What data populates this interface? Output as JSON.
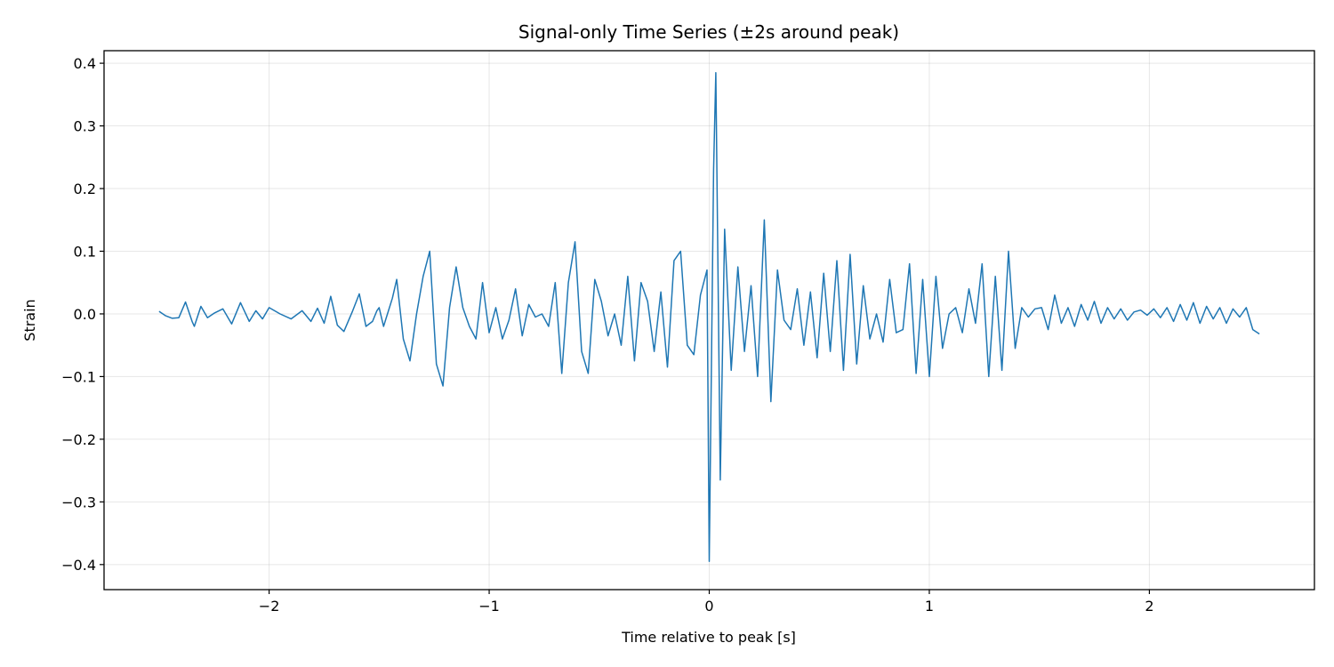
{
  "chart_data": {
    "type": "line",
    "title": "Signal-only Time Series (±2s around peak)",
    "xlabel": "Time relative to peak [s]",
    "ylabel": "Strain",
    "xlim": [
      -2.75,
      2.75
    ],
    "ylim": [
      -0.44,
      0.42
    ],
    "xticks": [
      -2,
      -1,
      0,
      1,
      2
    ],
    "xtick_labels": [
      "−2",
      "−1",
      "0",
      "1",
      "2"
    ],
    "yticks": [
      -0.4,
      -0.3,
      -0.2,
      -0.1,
      0.0,
      0.1,
      0.2,
      0.3,
      0.4
    ],
    "ytick_labels": [
      "−0.4",
      "−0.3",
      "−0.2",
      "−0.1",
      "0.0",
      "0.1",
      "0.2",
      "0.3",
      "0.4"
    ],
    "grid": true,
    "series": [
      {
        "color": "#1f77b4",
        "points": [
          [
            -2.5,
            0.004
          ],
          [
            -2.47,
            -0.003
          ],
          [
            -2.44,
            -0.007
          ],
          [
            -2.41,
            -0.006
          ],
          [
            -2.38,
            0.019
          ],
          [
            -2.35,
            -0.012
          ],
          [
            -2.34,
            -0.02
          ],
          [
            -2.31,
            0.012
          ],
          [
            -2.28,
            -0.006
          ],
          [
            -2.25,
            0.001
          ],
          [
            -2.21,
            0.008
          ],
          [
            -2.17,
            -0.016
          ],
          [
            -2.13,
            0.018
          ],
          [
            -2.09,
            -0.012
          ],
          [
            -2.06,
            0.005
          ],
          [
            -2.03,
            -0.008
          ],
          [
            -2.0,
            0.01
          ],
          [
            -1.95,
            0.0
          ],
          [
            -1.9,
            -0.008
          ],
          [
            -1.85,
            0.005
          ],
          [
            -1.81,
            -0.012
          ],
          [
            -1.78,
            0.009
          ],
          [
            -1.75,
            -0.015
          ],
          [
            -1.72,
            0.028
          ],
          [
            -1.69,
            -0.018
          ],
          [
            -1.66,
            -0.028
          ],
          [
            -1.62,
            0.005
          ],
          [
            -1.59,
            0.032
          ],
          [
            -1.56,
            -0.02
          ],
          [
            -1.53,
            -0.012
          ],
          [
            -1.51,
            0.005
          ],
          [
            -1.5,
            0.01
          ],
          [
            -1.48,
            -0.02
          ],
          [
            -1.44,
            0.025
          ],
          [
            -1.42,
            0.055
          ],
          [
            -1.39,
            -0.04
          ],
          [
            -1.36,
            -0.075
          ],
          [
            -1.33,
            0.0
          ],
          [
            -1.3,
            0.06
          ],
          [
            -1.27,
            0.1
          ],
          [
            -1.24,
            -0.08
          ],
          [
            -1.21,
            -0.115
          ],
          [
            -1.18,
            0.01
          ],
          [
            -1.15,
            0.075
          ],
          [
            -1.12,
            0.01
          ],
          [
            -1.09,
            -0.02
          ],
          [
            -1.06,
            -0.04
          ],
          [
            -1.03,
            0.05
          ],
          [
            -1.0,
            -0.03
          ],
          [
            -0.97,
            0.01
          ],
          [
            -0.94,
            -0.04
          ],
          [
            -0.91,
            -0.01
          ],
          [
            -0.88,
            0.04
          ],
          [
            -0.85,
            -0.035
          ],
          [
            -0.82,
            0.015
          ],
          [
            -0.79,
            -0.005
          ],
          [
            -0.76,
            0.0
          ],
          [
            -0.73,
            -0.02
          ],
          [
            -0.7,
            0.05
          ],
          [
            -0.67,
            -0.095
          ],
          [
            -0.64,
            0.05
          ],
          [
            -0.61,
            0.115
          ],
          [
            -0.58,
            -0.06
          ],
          [
            -0.55,
            -0.095
          ],
          [
            -0.52,
            0.055
          ],
          [
            -0.49,
            0.02
          ],
          [
            -0.46,
            -0.035
          ],
          [
            -0.43,
            0.0
          ],
          [
            -0.4,
            -0.05
          ],
          [
            -0.37,
            0.06
          ],
          [
            -0.34,
            -0.075
          ],
          [
            -0.31,
            0.05
          ],
          [
            -0.28,
            0.02
          ],
          [
            -0.25,
            -0.06
          ],
          [
            -0.22,
            0.035
          ],
          [
            -0.19,
            -0.085
          ],
          [
            -0.16,
            0.085
          ],
          [
            -0.13,
            0.1
          ],
          [
            -0.1,
            -0.05
          ],
          [
            -0.07,
            -0.065
          ],
          [
            -0.04,
            0.03
          ],
          [
            -0.01,
            0.07
          ],
          [
            0.0,
            -0.395
          ],
          [
            0.02,
            0.23
          ],
          [
            0.03,
            0.385
          ],
          [
            0.05,
            -0.265
          ],
          [
            0.07,
            0.135
          ],
          [
            0.1,
            -0.09
          ],
          [
            0.13,
            0.075
          ],
          [
            0.16,
            -0.06
          ],
          [
            0.19,
            0.045
          ],
          [
            0.22,
            -0.1
          ],
          [
            0.25,
            0.15
          ],
          [
            0.28,
            -0.14
          ],
          [
            0.31,
            0.07
          ],
          [
            0.34,
            -0.01
          ],
          [
            0.37,
            -0.025
          ],
          [
            0.4,
            0.04
          ],
          [
            0.43,
            -0.05
          ],
          [
            0.46,
            0.035
          ],
          [
            0.49,
            -0.07
          ],
          [
            0.52,
            0.065
          ],
          [
            0.55,
            -0.06
          ],
          [
            0.58,
            0.085
          ],
          [
            0.61,
            -0.09
          ],
          [
            0.64,
            0.095
          ],
          [
            0.67,
            -0.08
          ],
          [
            0.7,
            0.045
          ],
          [
            0.73,
            -0.04
          ],
          [
            0.76,
            0.0
          ],
          [
            0.79,
            -0.045
          ],
          [
            0.82,
            0.055
          ],
          [
            0.85,
            -0.03
          ],
          [
            0.88,
            -0.025
          ],
          [
            0.91,
            0.08
          ],
          [
            0.94,
            -0.095
          ],
          [
            0.97,
            0.055
          ],
          [
            1.0,
            -0.1
          ],
          [
            1.03,
            0.06
          ],
          [
            1.06,
            -0.055
          ],
          [
            1.09,
            0.0
          ],
          [
            1.12,
            0.01
          ],
          [
            1.15,
            -0.03
          ],
          [
            1.18,
            0.04
          ],
          [
            1.21,
            -0.015
          ],
          [
            1.24,
            0.08
          ],
          [
            1.27,
            -0.1
          ],
          [
            1.3,
            0.06
          ],
          [
            1.33,
            -0.09
          ],
          [
            1.36,
            0.1
          ],
          [
            1.39,
            -0.055
          ],
          [
            1.42,
            0.01
          ],
          [
            1.45,
            -0.005
          ],
          [
            1.48,
            0.008
          ],
          [
            1.51,
            0.01
          ],
          [
            1.54,
            -0.025
          ],
          [
            1.57,
            0.03
          ],
          [
            1.6,
            -0.015
          ],
          [
            1.63,
            0.01
          ],
          [
            1.66,
            -0.02
          ],
          [
            1.69,
            0.015
          ],
          [
            1.72,
            -0.01
          ],
          [
            1.75,
            0.02
          ],
          [
            1.78,
            -0.015
          ],
          [
            1.81,
            0.01
          ],
          [
            1.84,
            -0.008
          ],
          [
            1.87,
            0.008
          ],
          [
            1.9,
            -0.01
          ],
          [
            1.93,
            0.003
          ],
          [
            1.96,
            0.006
          ],
          [
            1.99,
            -0.002
          ],
          [
            2.02,
            0.008
          ],
          [
            2.05,
            -0.006
          ],
          [
            2.08,
            0.01
          ],
          [
            2.11,
            -0.012
          ],
          [
            2.14,
            0.015
          ],
          [
            2.17,
            -0.01
          ],
          [
            2.2,
            0.018
          ],
          [
            2.23,
            -0.015
          ],
          [
            2.26,
            0.012
          ],
          [
            2.29,
            -0.008
          ],
          [
            2.32,
            0.01
          ],
          [
            2.35,
            -0.015
          ],
          [
            2.38,
            0.008
          ],
          [
            2.41,
            -0.005
          ],
          [
            2.44,
            0.01
          ],
          [
            2.47,
            -0.025
          ],
          [
            2.5,
            -0.032
          ]
        ]
      }
    ]
  }
}
